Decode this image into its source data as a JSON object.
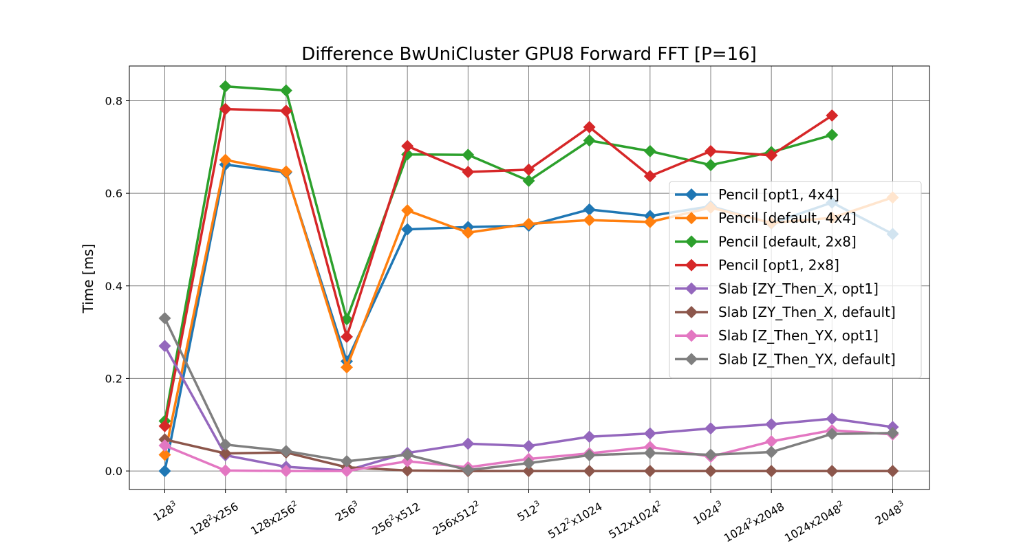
{
  "chart_data": {
    "type": "line",
    "title": "Difference BwUniCluster GPU8 Forward FFT [P=16]",
    "xlabel": "",
    "ylabel": "Time [ms]",
    "ylim": [
      -0.04,
      0.875
    ],
    "yticks": [
      "0.0",
      "0.2",
      "0.4",
      "0.6",
      "0.8"
    ],
    "ytick_values": [
      0.0,
      0.2,
      0.4,
      0.6,
      0.8
    ],
    "grid": true,
    "legend_position": "right",
    "categories": [
      {
        "base": "128",
        "sup": "3",
        "rest": "",
        "sup2": ""
      },
      {
        "base": "128",
        "sup": "2",
        "rest": "x256",
        "sup2": ""
      },
      {
        "base": "128x256",
        "sup": "2",
        "rest": "",
        "sup2": ""
      },
      {
        "base": "256",
        "sup": "3",
        "rest": "",
        "sup2": ""
      },
      {
        "base": "256",
        "sup": "2",
        "rest": "x512",
        "sup2": ""
      },
      {
        "base": "256x512",
        "sup": "2",
        "rest": "",
        "sup2": ""
      },
      {
        "base": "512",
        "sup": "3",
        "rest": "",
        "sup2": ""
      },
      {
        "base": "512",
        "sup": "2",
        "rest": "x1024",
        "sup2": ""
      },
      {
        "base": "512x1024",
        "sup": "2",
        "rest": "",
        "sup2": ""
      },
      {
        "base": "1024",
        "sup": "3",
        "rest": "",
        "sup2": ""
      },
      {
        "base": "1024",
        "sup": "2",
        "rest": "x2048",
        "sup2": ""
      },
      {
        "base": "1024x2048",
        "sup": "2",
        "rest": "",
        "sup2": ""
      },
      {
        "base": "2048",
        "sup": "3",
        "rest": "",
        "sup2": ""
      }
    ],
    "series": [
      {
        "name": "Pencil [opt1, 4x4]",
        "color": "#1f77b4",
        "values": [
          0.0,
          0.662,
          0.645,
          0.237,
          0.522,
          0.527,
          0.53,
          0.565,
          0.551,
          0.572,
          0.535,
          0.58,
          0.512
        ]
      },
      {
        "name": "Pencil [default, 4x4]",
        "color": "#ff7f0e",
        "values": [
          0.035,
          0.672,
          0.647,
          0.224,
          0.563,
          0.515,
          0.534,
          0.542,
          0.538,
          0.569,
          0.536,
          0.547,
          0.591
        ]
      },
      {
        "name": "Pencil [default, 2x8]",
        "color": "#2ca02c",
        "values": [
          0.108,
          0.831,
          0.822,
          0.328,
          0.684,
          0.683,
          0.627,
          0.714,
          0.691,
          0.661,
          0.689,
          0.726,
          null
        ]
      },
      {
        "name": "Pencil [opt1, 2x8]",
        "color": "#d62728",
        "values": [
          0.097,
          0.782,
          0.778,
          0.29,
          0.702,
          0.646,
          0.651,
          0.743,
          0.637,
          0.691,
          0.682,
          0.768,
          null
        ]
      },
      {
        "name": "Slab [ZY_Then_X, opt1]",
        "color": "#9467bd",
        "values": [
          0.27,
          0.034,
          0.009,
          0.001,
          0.039,
          0.059,
          0.054,
          0.074,
          0.081,
          0.092,
          0.101,
          0.113,
          0.095
        ]
      },
      {
        "name": "Slab [ZY_Then_X, default]",
        "color": "#8c564b",
        "values": [
          0.068,
          0.038,
          0.04,
          0.008,
          0.001,
          0.0,
          0.0,
          0.0,
          0.0,
          0.0,
          0.0,
          0.0,
          0.0
        ]
      },
      {
        "name": "Slab [Z_Then_YX, opt1]",
        "color": "#e377c2",
        "values": [
          0.055,
          0.001,
          0.0,
          0.0,
          0.021,
          0.008,
          0.026,
          0.038,
          0.052,
          0.031,
          0.064,
          0.088,
          0.079
        ]
      },
      {
        "name": "Slab [Z_Then_YX, default]",
        "color": "#7f7f7f",
        "values": [
          0.33,
          0.057,
          0.043,
          0.021,
          0.035,
          0.002,
          0.017,
          0.034,
          0.039,
          0.035,
          0.041,
          0.08,
          0.082
        ]
      }
    ]
  }
}
